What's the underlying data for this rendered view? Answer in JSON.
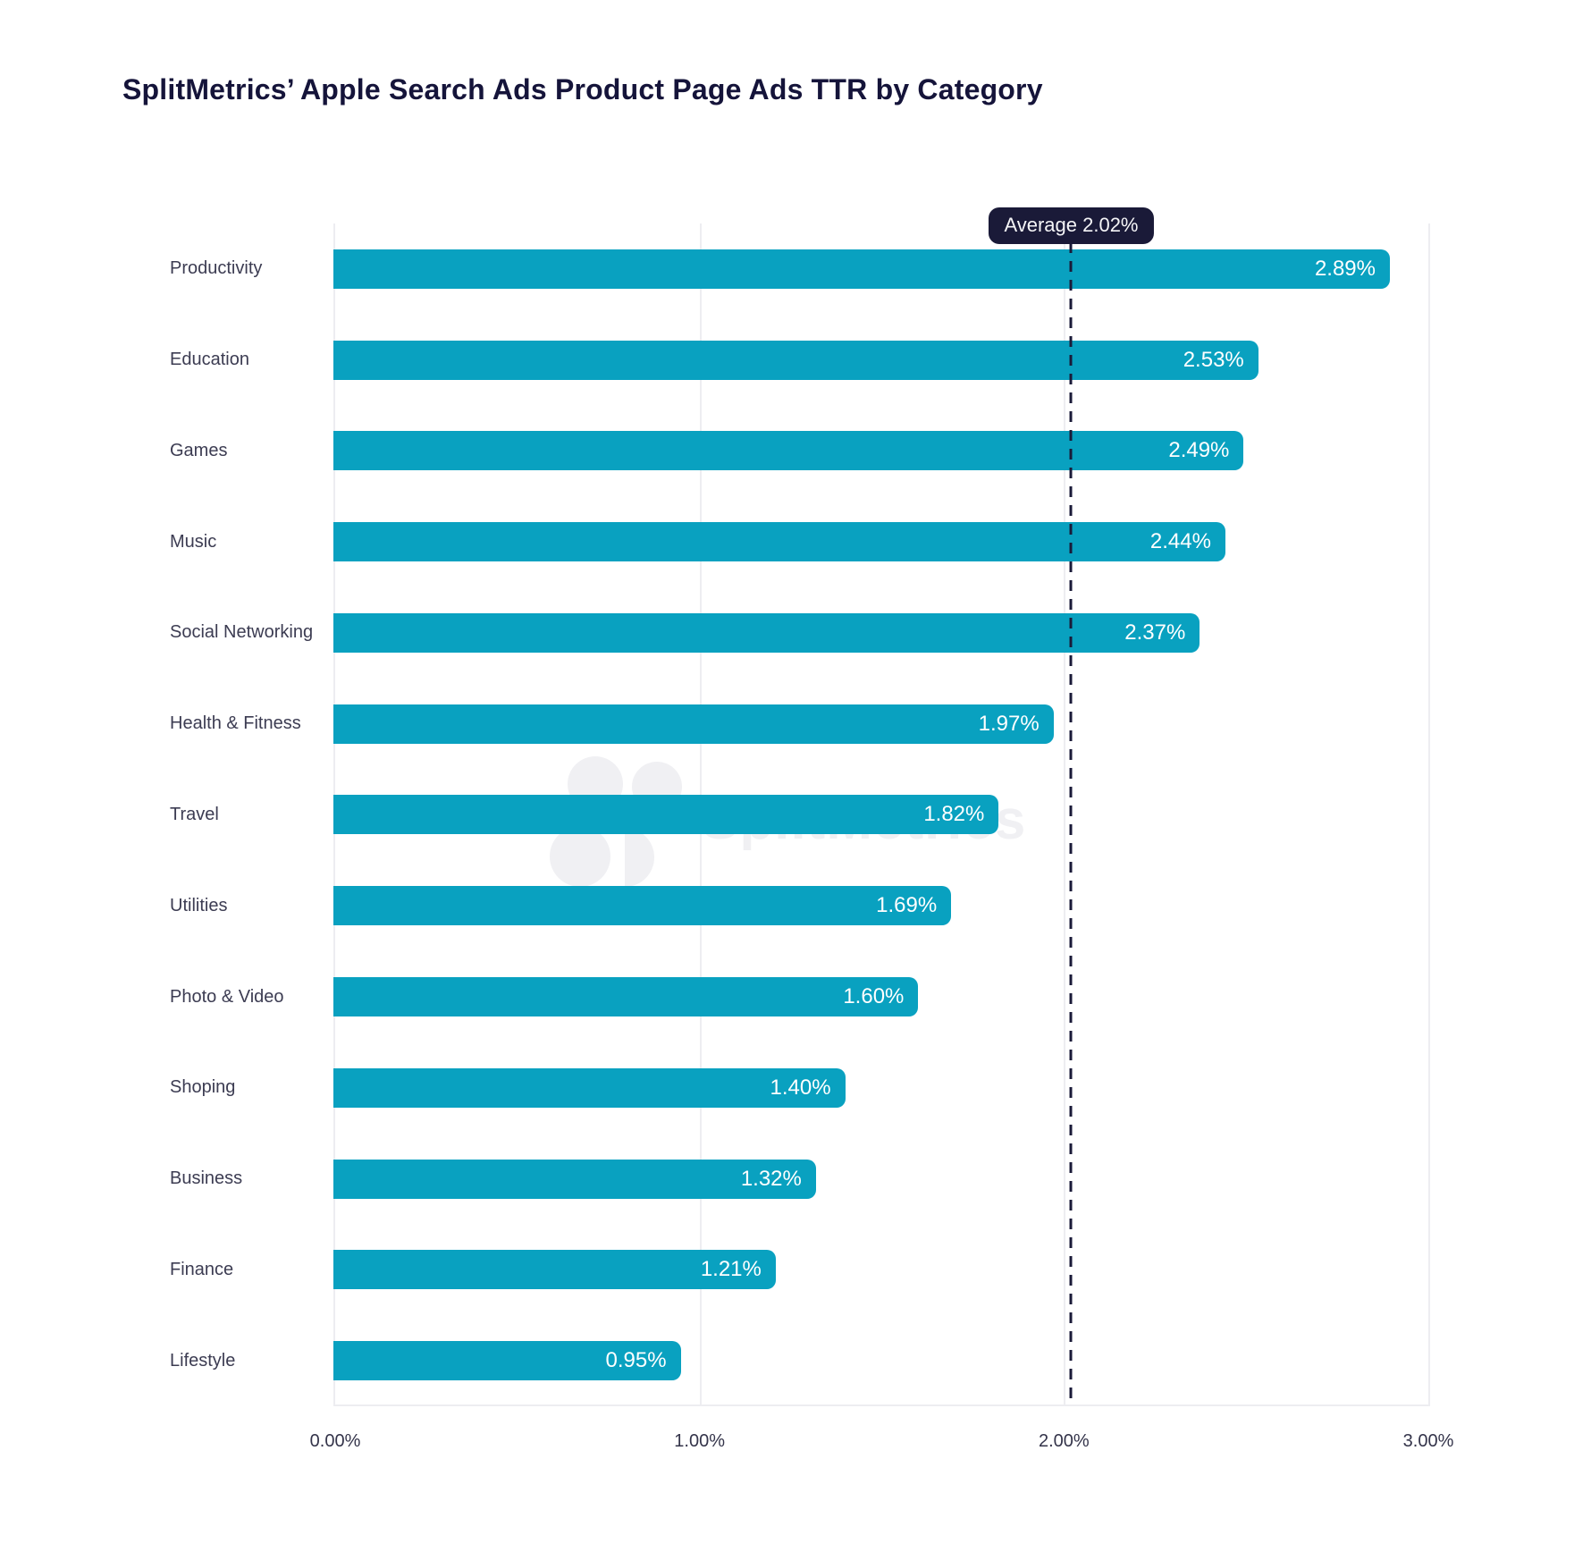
{
  "title": "SplitMetrics’ Apple Search Ads Product Page Ads TTR by Category",
  "watermark_text": "SplitMetrics",
  "average_label": "Average 2.02%",
  "colors": {
    "bar": "#09a1c0",
    "navy": "#1a1a38",
    "title": "#15143a",
    "category_label": "#3c3c52",
    "tick_label": "#34344a",
    "gridline": "#ededf1",
    "watermark": "#f0f0f3"
  },
  "chart_data": {
    "type": "bar",
    "orientation": "horizontal",
    "title": "SplitMetrics’ Apple Search Ads Product Page Ads TTR by Category",
    "categories": [
      "Productivity",
      "Education",
      "Games",
      "Music",
      "Social Networking",
      "Health & Fitness",
      "Travel",
      "Utilities",
      "Photo & Video",
      "Shoping",
      "Business",
      "Finance",
      "Lifestyle"
    ],
    "values": [
      2.89,
      2.53,
      2.49,
      2.44,
      2.37,
      1.97,
      1.82,
      1.69,
      1.6,
      1.4,
      1.32,
      1.21,
      0.95
    ],
    "value_labels": [
      "2.89%",
      "2.53%",
      "2.49%",
      "2.44%",
      "2.37%",
      "1.97%",
      "1.82%",
      "1.69%",
      "1.60%",
      "1.40%",
      "1.32%",
      "1.21%",
      "0.95%"
    ],
    "xlim": [
      0,
      3
    ],
    "x_tick_labels": [
      "0.00%",
      "1.00%",
      "2.00%",
      "3.00%"
    ],
    "x_tick_values": [
      0,
      1,
      2,
      3
    ],
    "grid": "vertical",
    "average_line": {
      "value": 2.02,
      "label": "Average 2.02%"
    },
    "legend": "none"
  }
}
